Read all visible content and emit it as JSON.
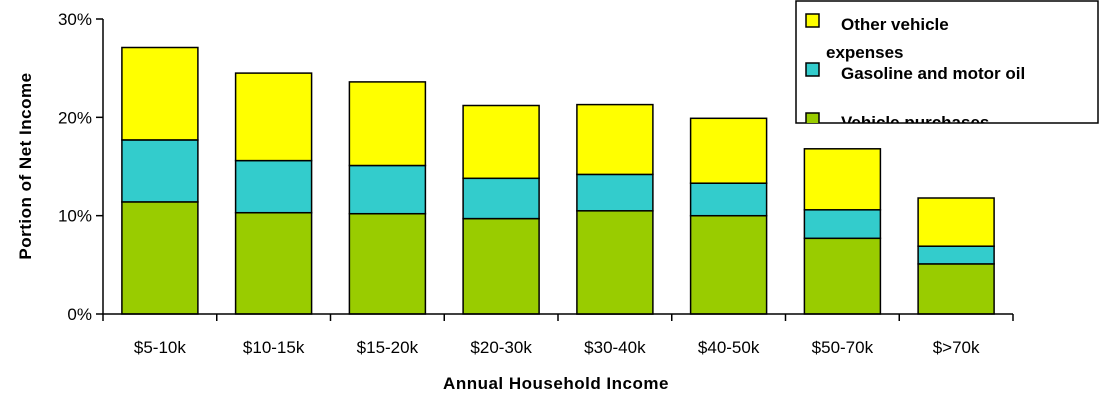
{
  "chart_data": {
    "type": "bar",
    "stacked": true,
    "categories": [
      "$5-10k",
      "$10-15k",
      "$15-20k",
      "$20-30k",
      "$30-40k",
      "$40-50k",
      "$50-70k",
      "$>70k"
    ],
    "series": [
      {
        "name": "Vehicle purchases",
        "color": "#99CC00",
        "values": [
          11.4,
          10.3,
          10.2,
          9.7,
          10.5,
          10.0,
          7.7,
          5.1
        ]
      },
      {
        "name": "Gasoline and motor oil",
        "color": "#33CCCC",
        "values": [
          6.3,
          5.3,
          4.9,
          4.1,
          3.7,
          3.3,
          2.9,
          1.8
        ]
      },
      {
        "name": "Other vehicle expenses",
        "color": "#FFFF00",
        "values": [
          9.4,
          8.9,
          8.5,
          7.4,
          7.1,
          6.6,
          6.2,
          4.9
        ]
      }
    ],
    "xlabel": "Annual  Household  Income",
    "ylabel": "Portion of Net Income",
    "ylim": [
      0,
      30
    ],
    "yticks": [
      0,
      10,
      20,
      30
    ],
    "ytick_labels": [
      "0%",
      "10%",
      "20%",
      "30%"
    ],
    "grid": false,
    "legend": {
      "position": "top-right",
      "entries": [
        {
          "label_lines": [
            "Other vehicle",
            "expenses"
          ],
          "color": "#FFFF00"
        },
        {
          "label_lines": [
            "Gasoline and motor oil"
          ],
          "color": "#33CCCC"
        },
        {
          "label_lines": [
            "Vehicle purchases"
          ],
          "color": "#99CC00"
        }
      ]
    }
  }
}
